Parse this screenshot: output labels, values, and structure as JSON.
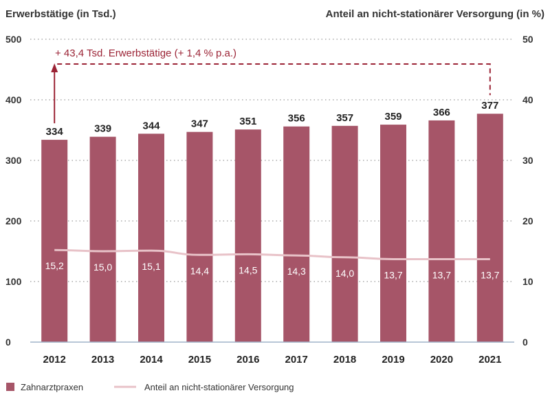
{
  "colors": {
    "bar": "#a65568",
    "line": "#e8c2c8",
    "annotation": "#9b2335",
    "grid": "#999999",
    "baseline": "#9fb3c8",
    "text": "#333333"
  },
  "chart_data": {
    "type": "bar",
    "left_axis_title": "Erwerbstätige (in Tsd.)",
    "right_axis_title": "Anteil an nicht-stationärer Versorgung (in %)",
    "categories": [
      "2012",
      "2013",
      "2014",
      "2015",
      "2016",
      "2017",
      "2018",
      "2019",
      "2020",
      "2021"
    ],
    "series": [
      {
        "name": "Zahnarztpraxen",
        "type": "bar",
        "axis": "left",
        "values": [
          334,
          339,
          344,
          347,
          351,
          356,
          357,
          359,
          366,
          377
        ],
        "labels": [
          "334",
          "339",
          "344",
          "347",
          "351",
          "356",
          "357",
          "359",
          "366",
          "377"
        ]
      },
      {
        "name": "Anteil an nicht-stationärer Versorgung",
        "type": "line",
        "axis": "right",
        "values": [
          15.2,
          15.0,
          15.1,
          14.4,
          14.5,
          14.3,
          14.0,
          13.7,
          13.7,
          13.7
        ],
        "labels": [
          "15,2",
          "15,0",
          "15,1",
          "14,4",
          "14,5",
          "14,3",
          "14,0",
          "13,7",
          "13,7",
          "13,7"
        ]
      }
    ],
    "left_axis": {
      "min": 0,
      "max": 500,
      "ticks": [
        "0",
        "100",
        "200",
        "300",
        "400",
        "500"
      ]
    },
    "right_axis": {
      "min": 0,
      "max": 50,
      "ticks": [
        "0",
        "10",
        "20",
        "30",
        "40",
        "50"
      ]
    },
    "grid": true,
    "legend": "bottom-left",
    "annotation": {
      "text": "+ 43,4 Tsd. Erwerbstätige (+ 1,4 % p.a.)",
      "from_category": "2012",
      "to_category": "2021"
    }
  }
}
